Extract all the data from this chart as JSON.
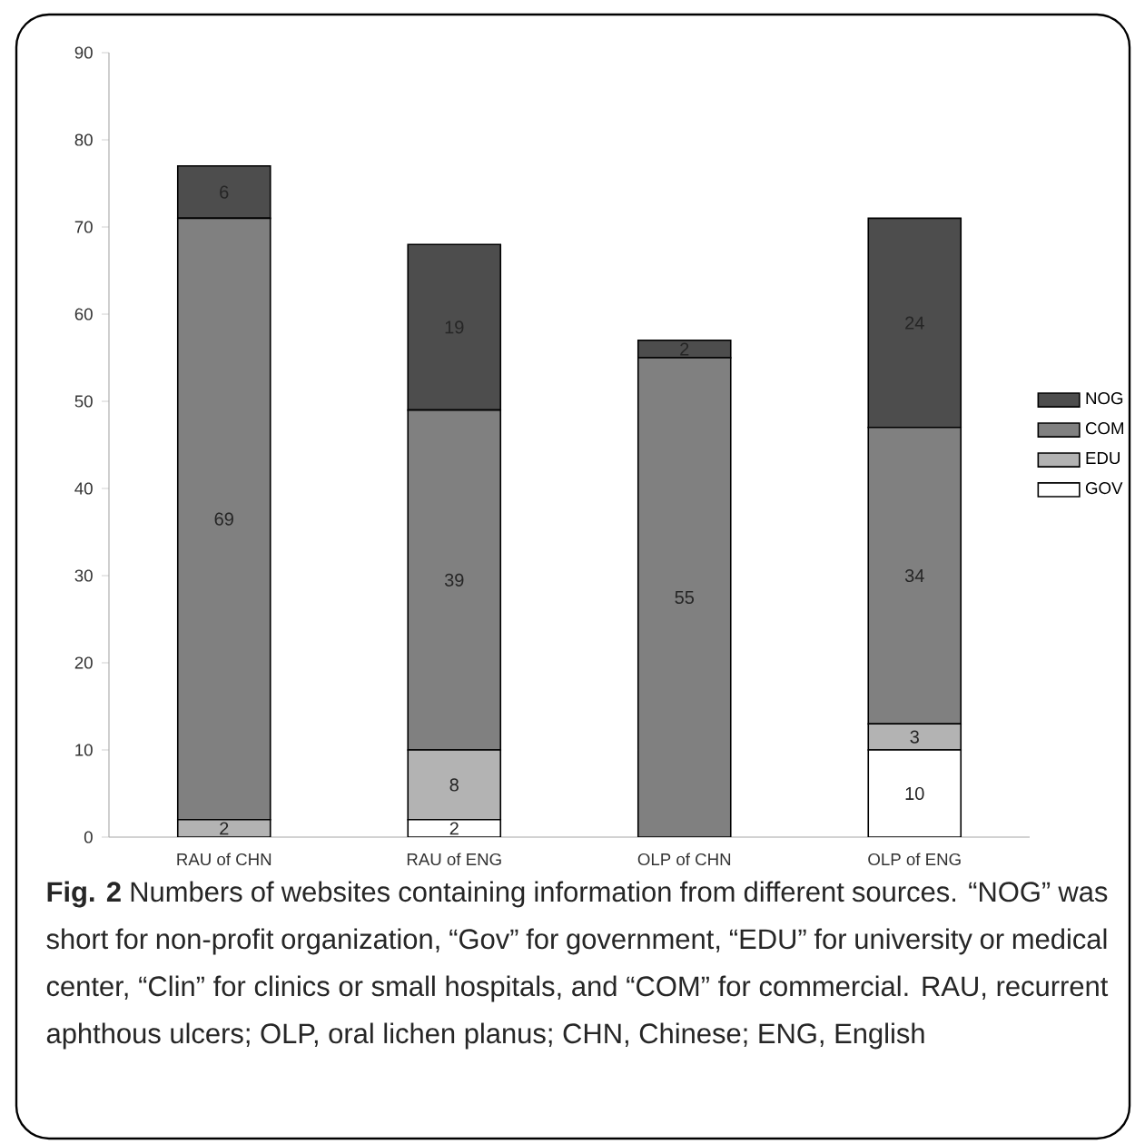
{
  "chart_data": {
    "type": "bar",
    "stacked": true,
    "categories": [
      "RAU of CHN",
      "RAU of ENG",
      "OLP of CHN",
      "OLP of ENG"
    ],
    "series": [
      {
        "name": "GOV",
        "color": "#ffffff",
        "values": [
          0,
          2,
          0,
          10
        ],
        "value_labels": [
          null,
          "2",
          null,
          "10"
        ]
      },
      {
        "name": "EDU",
        "color": "#b3b3b3",
        "values": [
          2,
          8,
          0,
          3
        ],
        "value_labels": [
          "2",
          "8",
          null,
          "3"
        ]
      },
      {
        "name": "COM",
        "color": "#808080",
        "values": [
          69,
          39,
          55,
          34
        ],
        "value_labels": [
          "69",
          "39",
          "55",
          "34"
        ]
      },
      {
        "name": "NOG",
        "color": "#4d4d4d",
        "values": [
          6,
          19,
          2,
          24
        ],
        "value_labels": [
          "6",
          "19",
          "2",
          "24"
        ]
      }
    ],
    "ylim": [
      0,
      90
    ],
    "yticks": [
      0,
      10,
      20,
      30,
      40,
      50,
      60,
      70,
      80,
      90
    ],
    "grid": false,
    "legend": "right",
    "annotations": [
      "**Fig. 2** Numbers of websites containing information from different sources. “NOG” was short for non-profit organization, “Gov” for government, “EDU” for university or medical center, “Clin” for clinics or small hospitals, and “COM” for commercial. RAU, recurrent aphthous ulcers; OLP, oral lichen planus; CHN, Chinese; ENG, English"
    ]
  }
}
